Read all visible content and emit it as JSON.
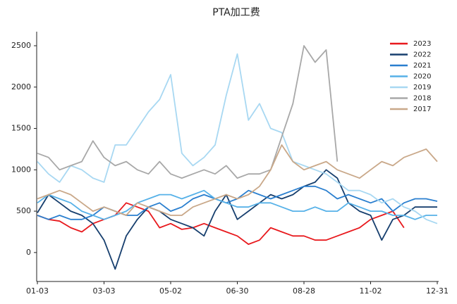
{
  "chart_data": {
    "type": "line",
    "title": "PTA加工费",
    "categories": [
      "01-03",
      null,
      null,
      null,
      null,
      null,
      "03-03",
      null,
      null,
      null,
      null,
      null,
      "05-02",
      null,
      null,
      null,
      null,
      null,
      "06-30",
      null,
      null,
      null,
      null,
      null,
      "08-28",
      null,
      null,
      null,
      null,
      null,
      "11-02",
      null,
      null,
      null,
      null,
      null,
      "12-31"
    ],
    "ylim": [
      -350,
      2670
    ],
    "yticks": [
      0,
      500,
      1000,
      1500,
      2000,
      2500
    ],
    "grid": false,
    "legend": "upper right",
    "series": [
      {
        "name": "2023",
        "color": "#e8191d",
        "values": [
          450,
          400,
          380,
          300,
          250,
          350,
          400,
          450,
          600,
          550,
          500,
          300,
          350,
          280,
          300,
          350,
          300,
          250,
          200,
          100,
          150,
          300,
          250,
          200,
          200,
          150,
          150,
          200,
          250,
          300,
          400,
          450,
          500,
          300,
          null,
          null,
          null
        ]
      },
      {
        "name": "2022",
        "color": "#173f6e",
        "values": [
          480,
          700,
          600,
          500,
          450,
          350,
          150,
          -200,
          200,
          400,
          550,
          500,
          400,
          350,
          300,
          200,
          500,
          700,
          400,
          500,
          600,
          700,
          650,
          700,
          800,
          850,
          1000,
          900,
          600,
          500,
          450,
          150,
          400,
          450,
          550,
          550,
          550
        ]
      },
      {
        "name": "2021",
        "color": "#2a7fcf",
        "values": [
          450,
          400,
          450,
          400,
          400,
          450,
          550,
          500,
          450,
          450,
          550,
          600,
          500,
          550,
          650,
          700,
          650,
          600,
          650,
          750,
          700,
          650,
          700,
          750,
          800,
          800,
          750,
          650,
          700,
          650,
          600,
          650,
          500,
          600,
          650,
          650,
          620
        ]
      },
      {
        "name": "2020",
        "color": "#56b1e8",
        "values": [
          600,
          700,
          650,
          600,
          500,
          450,
          400,
          450,
          500,
          600,
          650,
          700,
          700,
          650,
          700,
          750,
          650,
          600,
          550,
          550,
          600,
          600,
          550,
          500,
          500,
          550,
          500,
          500,
          600,
          550,
          500,
          500,
          450,
          450,
          400,
          450,
          450
        ]
      },
      {
        "name": "2019",
        "color": "#a8d8f2",
        "values": [
          1100,
          950,
          850,
          1050,
          1000,
          900,
          850,
          1300,
          1300,
          1500,
          1700,
          1850,
          2150,
          1200,
          1050,
          1150,
          1300,
          1900,
          2400,
          1600,
          1800,
          1500,
          1450,
          1100,
          1050,
          1000,
          950,
          850,
          750,
          750,
          700,
          600,
          650,
          550,
          500,
          400,
          350
        ]
      },
      {
        "name": "2018",
        "color": "#a8a8a8",
        "values": [
          1200,
          1150,
          1000,
          1050,
          1100,
          1350,
          1150,
          1050,
          1100,
          1000,
          950,
          1100,
          950,
          900,
          950,
          1000,
          950,
          1050,
          900,
          950,
          950,
          1000,
          1400,
          1800,
          2500,
          2300,
          2450,
          1100,
          null,
          null,
          null,
          null,
          null,
          null,
          null,
          null,
          null
        ]
      },
      {
        "name": "2017",
        "color": "#c9a889",
        "values": [
          650,
          700,
          750,
          700,
          600,
          500,
          550,
          500,
          450,
          600,
          550,
          500,
          450,
          450,
          550,
          600,
          650,
          700,
          650,
          700,
          800,
          1000,
          1300,
          1100,
          1000,
          1050,
          1100,
          1000,
          950,
          900,
          1000,
          1100,
          1050,
          1150,
          1200,
          1250,
          1100
        ]
      }
    ]
  }
}
